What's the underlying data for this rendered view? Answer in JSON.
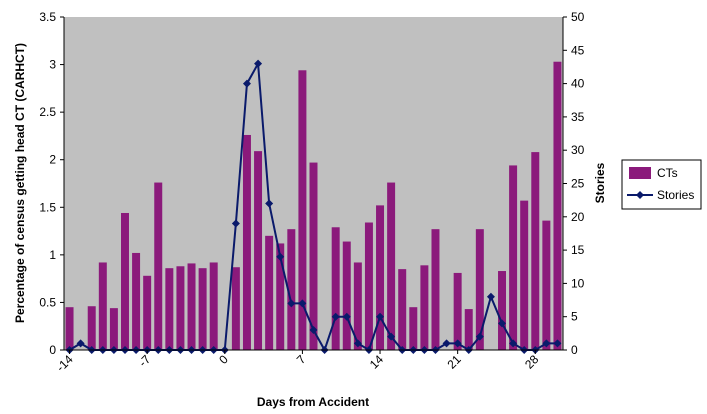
{
  "chart_data": {
    "type": "bar",
    "title": "",
    "xlabel": "Days from Accident",
    "ylabel": "Percentage of census  getting head CT (CARHCT)",
    "y2label": "Stories",
    "ylim": [
      0,
      3.5
    ],
    "y2lim": [
      0,
      50
    ],
    "xlim": [
      -14,
      30
    ],
    "x_tick_labels": [
      "-14",
      "-7",
      "0",
      "7",
      "14",
      "21",
      "28"
    ],
    "y_tick_labels": [
      "0",
      "0.5",
      "1",
      "1.5",
      "2",
      "2.5",
      "3",
      "3.5"
    ],
    "y2_tick_labels": [
      "0",
      "5",
      "10",
      "15",
      "20",
      "25",
      "30",
      "35",
      "40",
      "45",
      "50"
    ],
    "plot_background": "#c0c0c0",
    "legend_position": "right",
    "series": [
      {
        "name": "CTs",
        "kind": "bar",
        "color": "#8b1a7b",
        "x": [
          -14,
          -12,
          -11,
          -10,
          -9,
          -8,
          -7,
          -6,
          -5,
          -4,
          -3,
          -2,
          -1,
          1,
          2,
          3,
          4,
          5,
          6,
          7,
          8,
          10,
          11,
          12,
          13,
          14,
          15,
          16,
          17,
          18,
          19,
          21,
          22,
          23,
          25,
          26,
          27,
          28,
          29,
          30
        ],
        "values": [
          0.45,
          0.46,
          0.92,
          0.44,
          1.44,
          1.02,
          0.78,
          1.76,
          0.86,
          0.88,
          0.91,
          0.86,
          0.92,
          0.87,
          2.26,
          2.09,
          1.2,
          1.12,
          1.27,
          2.94,
          1.97,
          1.29,
          1.14,
          0.92,
          1.34,
          1.52,
          1.76,
          0.85,
          0.45,
          0.89,
          1.27,
          0.81,
          0.43,
          1.27,
          0.83,
          1.94,
          1.57,
          2.08,
          1.36,
          3.03
        ]
      },
      {
        "name": "Stories",
        "kind": "line",
        "axis": "right",
        "color": "#0a1a6b",
        "marker": "diamond",
        "x": [
          -14,
          -13,
          -12,
          -11,
          -10,
          -9,
          -8,
          -7,
          -6,
          -5,
          -4,
          -3,
          -2,
          -1,
          0,
          1,
          2,
          3,
          4,
          5,
          6,
          7,
          8,
          9,
          10,
          11,
          12,
          13,
          14,
          15,
          16,
          17,
          18,
          19,
          20,
          21,
          22,
          23,
          24,
          25,
          26,
          27,
          28,
          29,
          30
        ],
        "values": [
          0,
          1,
          0,
          0,
          0,
          0,
          0,
          0,
          0,
          0,
          0,
          0,
          0,
          0,
          0,
          19,
          40,
          43,
          22,
          14,
          7,
          7,
          3,
          0,
          5,
          5,
          1,
          0,
          5,
          2,
          0,
          0,
          0,
          0,
          1,
          1,
          0,
          2,
          8,
          4,
          1,
          0,
          0,
          1,
          1
        ]
      }
    ]
  }
}
